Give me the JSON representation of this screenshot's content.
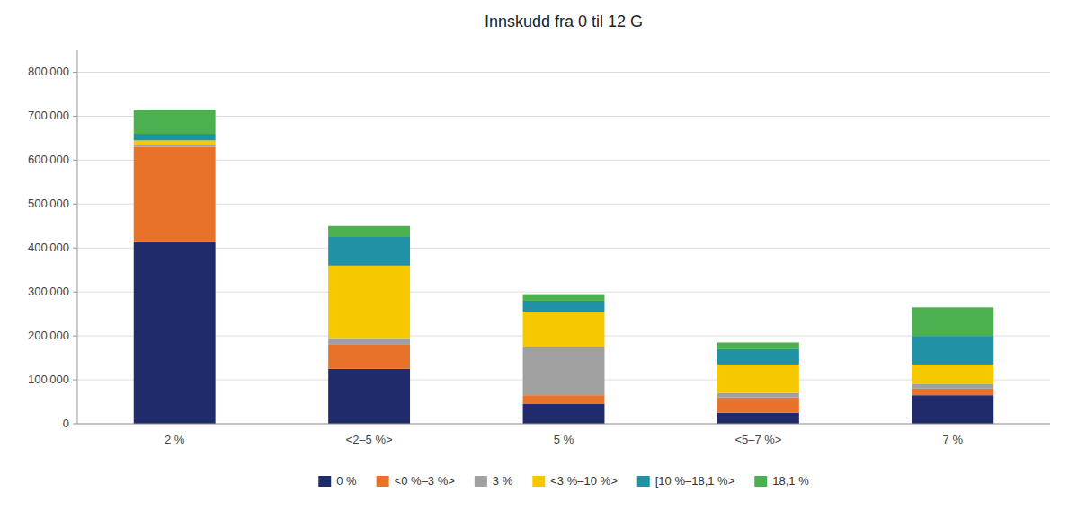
{
  "chart_data": {
    "type": "bar",
    "stacked": true,
    "title": "Innskudd fra 0 til 12 G",
    "categories": [
      "2 %",
      "<2–5 %>",
      "5 %",
      "<5–7 %>",
      "7 %"
    ],
    "series": [
      {
        "name": "0 %",
        "color": "#1f2b6b",
        "values": [
          415000,
          125000,
          45000,
          25000,
          65000
        ]
      },
      {
        "name": "<0 %–3 %>",
        "color": "#e8722a",
        "values": [
          215000,
          55000,
          20000,
          35000,
          15000
        ]
      },
      {
        "name": "3 %",
        "color": "#a0a0a0",
        "values": [
          5000,
          15000,
          110000,
          10000,
          10000
        ]
      },
      {
        "name": "<3 %–10 %>",
        "color": "#f5c800",
        "values": [
          10000,
          165000,
          80000,
          65000,
          45000
        ]
      },
      {
        "name": "[10 %–18,1 %>",
        "color": "#2191a5",
        "values": [
          15000,
          65000,
          25000,
          35000,
          65000
        ]
      },
      {
        "name": "18,1 %",
        "color": "#4caf50",
        "values": [
          55000,
          25000,
          15000,
          15000,
          65000
        ]
      }
    ],
    "ylim": [
      0,
      850000
    ],
    "yticks": [
      0,
      {
        "value": 100000,
        "label": "100 000"
      },
      {
        "value": 200000,
        "label": "200 000"
      },
      {
        "value": 300000,
        "label": "300 000"
      },
      {
        "value": 400000,
        "label": "400 000"
      },
      {
        "value": 500000,
        "label": "500 000"
      },
      {
        "value": 600000,
        "label": "600 000"
      },
      {
        "value": 700000,
        "label": "700 000"
      },
      {
        "value": 800000,
        "label": "800 000"
      }
    ],
    "grid": true,
    "legend": "bottom"
  }
}
